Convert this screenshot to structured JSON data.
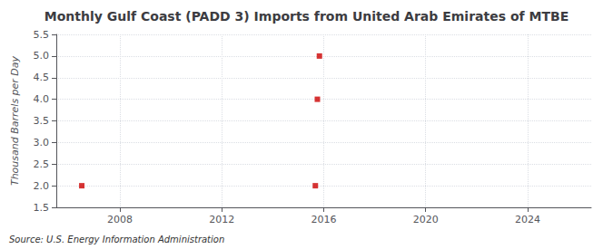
{
  "chart_data": {
    "type": "scatter",
    "title": "Monthly Gulf Coast (PADD 3) Imports from United Arab Emirates of MTBE",
    "ylabel": "Thousand Barrels per Day",
    "source": "Source: U.S. Energy Information Administration",
    "x": [
      2006.5,
      2015.67,
      2015.75,
      2015.83
    ],
    "values": [
      2.0,
      2.0,
      4.0,
      5.0
    ],
    "color": "#cc0000",
    "marker": "square",
    "xlim": [
      2005.5,
      2026.5
    ],
    "xticks": [
      2008,
      2012,
      2016,
      2020,
      2024
    ],
    "ylim": [
      1.5,
      5.5
    ],
    "yticks": [
      1.5,
      {
        "value": 2.0,
        "label": "2.0"
      },
      2.5,
      {
        "value": 3.0,
        "label": "3.0"
      },
      3.5,
      {
        "value": 4.0,
        "label": "4.0"
      },
      4.5,
      {
        "value": 5.0,
        "label": "5.0"
      },
      5.5
    ],
    "grid": true
  }
}
